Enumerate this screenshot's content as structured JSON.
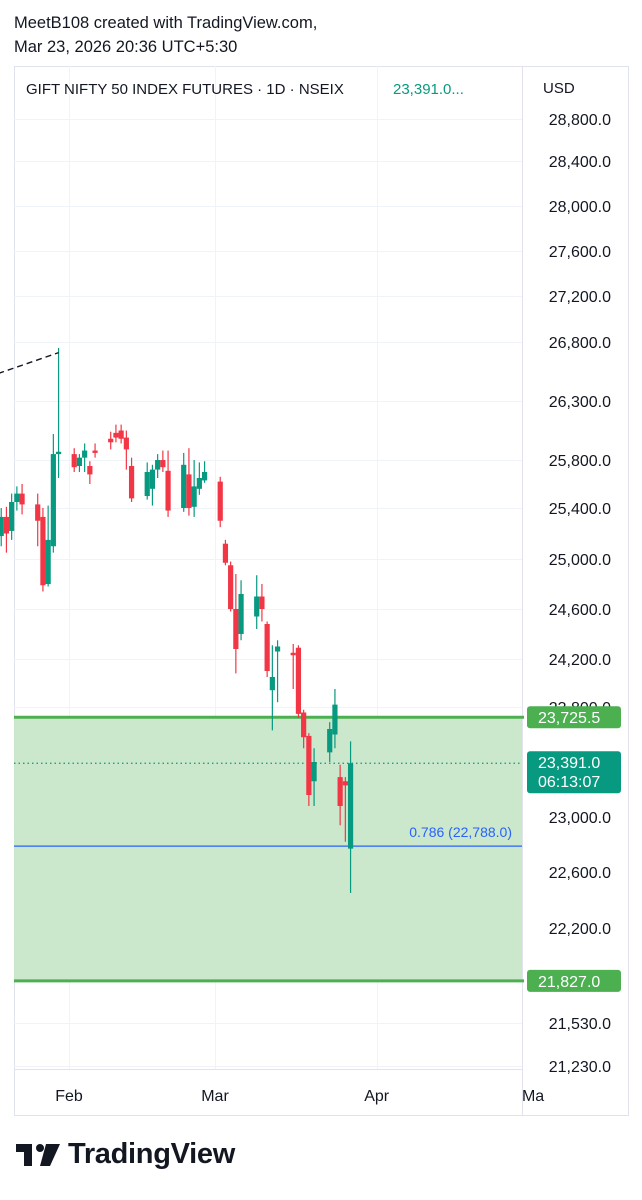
{
  "header": {
    "line1": "MeetB108 created with TradingView.com,",
    "line2": "Mar 23, 2026 20:36 UTC+5:30"
  },
  "symbol": {
    "title": "GIFT NIFTY 50 INDEX FUTURES · 1D · NSEIX",
    "price_text": "23,391.0...",
    "currency": "USD"
  },
  "footer": {
    "logo_text": "TradingView"
  },
  "colors": {
    "up": "#089981",
    "down": "#f23645",
    "zone_fill": "#c8e6c9",
    "zone_line": "#4caf50",
    "fib_line": "#2962ff",
    "grid": "#f0f3fa"
  },
  "chart_data": {
    "type": "candlestick",
    "ylim": [
      21080,
      28960
    ],
    "price_scale": [
      {
        "label": "28,800.0",
        "value": 28800
      },
      {
        "label": "28,400.0",
        "value": 28400
      },
      {
        "label": "28,000.0",
        "value": 28000
      },
      {
        "label": "27,600.0",
        "value": 27600
      },
      {
        "label": "27,200.0",
        "value": 27200
      },
      {
        "label": "26,800.0",
        "value": 26800
      },
      {
        "label": "26,300.0",
        "value": 26300
      },
      {
        "label": "25,800.0",
        "value": 25800
      },
      {
        "label": "25,400.0",
        "value": 25400
      },
      {
        "label": "25,000.0",
        "value": 25000
      },
      {
        "label": "24,600.0",
        "value": 24600
      },
      {
        "label": "24,200.0",
        "value": 24200
      },
      {
        "label": "23,800.0",
        "value": 23800
      },
      {
        "label": "23,000.0",
        "value": 23000
      },
      {
        "label": "22,600.0",
        "value": 22600
      },
      {
        "label": "22,200.0",
        "value": 22200
      },
      {
        "label": "21,530.0",
        "value": 21530
      },
      {
        "label": "21,230.0",
        "value": 21230
      }
    ],
    "time_scale": [
      {
        "label": "Feb",
        "date": "2026-02-01"
      },
      {
        "label": "Mar",
        "date": "2026-03-01"
      },
      {
        "label": "Apr",
        "date": "2026-04-01"
      },
      {
        "label": "Ma",
        "date": "2026-05-01"
      }
    ],
    "candles": [
      {
        "date": "2026-01-13",
        "open": 25520,
        "high": 25600,
        "low": 25080,
        "close": 25220
      },
      {
        "date": "2026-01-14",
        "open": 25220,
        "high": 25380,
        "low": 25100,
        "close": 25320
      },
      {
        "date": "2026-01-15",
        "open": 25300,
        "high": 25450,
        "low": 25180,
        "close": 25410
      },
      {
        "date": "2026-01-16",
        "open": 25410,
        "high": 25480,
        "low": 25100,
        "close": 25180
      },
      {
        "date": "2026-01-19",
        "open": 25180,
        "high": 25400,
        "low": 25100,
        "close": 25330
      },
      {
        "date": "2026-01-20",
        "open": 25330,
        "high": 25410,
        "low": 25050,
        "close": 25200
      },
      {
        "date": "2026-01-21",
        "open": 25220,
        "high": 25520,
        "low": 25150,
        "close": 25450
      },
      {
        "date": "2026-01-22",
        "open": 25450,
        "high": 25580,
        "low": 25380,
        "close": 25520
      },
      {
        "date": "2026-01-23",
        "open": 25520,
        "high": 25600,
        "low": 25350,
        "close": 25430
      },
      {
        "date": "2026-01-26",
        "open": 25430,
        "high": 25520,
        "low": 25100,
        "close": 25300
      },
      {
        "date": "2026-01-27",
        "open": 25330,
        "high": 25400,
        "low": 24740,
        "close": 24790
      },
      {
        "date": "2026-01-28",
        "open": 24800,
        "high": 25420,
        "low": 24780,
        "close": 25150
      },
      {
        "date": "2026-01-29",
        "open": 25100,
        "high": 26020,
        "low": 25050,
        "close": 25850
      },
      {
        "date": "2026-01-30",
        "open": 25850,
        "high": 26750,
        "low": 25650,
        "close": 25870
      },
      {
        "date": "2026-02-02",
        "open": 25850,
        "high": 25900,
        "low": 25700,
        "close": 25740
      },
      {
        "date": "2026-02-03",
        "open": 25750,
        "high": 25850,
        "low": 25700,
        "close": 25820
      },
      {
        "date": "2026-02-04",
        "open": 25820,
        "high": 25940,
        "low": 25700,
        "close": 25880
      },
      {
        "date": "2026-02-05",
        "open": 25750,
        "high": 25790,
        "low": 25600,
        "close": 25680
      },
      {
        "date": "2026-02-06",
        "open": 25880,
        "high": 25940,
        "low": 25820,
        "close": 25860
      },
      {
        "date": "2026-02-09",
        "open": 25980,
        "high": 26040,
        "low": 25890,
        "close": 25950
      },
      {
        "date": "2026-02-10",
        "open": 26030,
        "high": 26100,
        "low": 25950,
        "close": 25990
      },
      {
        "date": "2026-02-11",
        "open": 26050,
        "high": 26100,
        "low": 25940,
        "close": 25980
      },
      {
        "date": "2026-02-12",
        "open": 25990,
        "high": 26050,
        "low": 25720,
        "close": 25890
      },
      {
        "date": "2026-02-13",
        "open": 25750,
        "high": 25820,
        "low": 25450,
        "close": 25480
      },
      {
        "date": "2026-02-16",
        "open": 25500,
        "high": 25780,
        "low": 25470,
        "close": 25700
      },
      {
        "date": "2026-02-17",
        "open": 25560,
        "high": 25760,
        "low": 25420,
        "close": 25720
      },
      {
        "date": "2026-02-18",
        "open": 25720,
        "high": 25850,
        "low": 25650,
        "close": 25800
      },
      {
        "date": "2026-02-19",
        "open": 25800,
        "high": 25880,
        "low": 25700,
        "close": 25740
      },
      {
        "date": "2026-02-20",
        "open": 25710,
        "high": 25880,
        "low": 25330,
        "close": 25380
      },
      {
        "date": "2026-02-23",
        "open": 25400,
        "high": 25860,
        "low": 25370,
        "close": 25760
      },
      {
        "date": "2026-02-24",
        "open": 25680,
        "high": 25900,
        "low": 25340,
        "close": 25400
      },
      {
        "date": "2026-02-25",
        "open": 25410,
        "high": 25800,
        "low": 25330,
        "close": 25580
      },
      {
        "date": "2026-02-26",
        "open": 25560,
        "high": 25780,
        "low": 25510,
        "close": 25650
      },
      {
        "date": "2026-02-27",
        "open": 25630,
        "high": 25790,
        "low": 25610,
        "close": 25700
      },
      {
        "date": "2026-03-02",
        "open": 25620,
        "high": 25660,
        "low": 25250,
        "close": 25300
      },
      {
        "date": "2026-03-03",
        "open": 25120,
        "high": 25150,
        "low": 24950,
        "close": 24970
      },
      {
        "date": "2026-03-04",
        "open": 24950,
        "high": 24980,
        "low": 24580,
        "close": 24600
      },
      {
        "date": "2026-03-05",
        "open": 24600,
        "high": 24880,
        "low": 24080,
        "close": 24280
      },
      {
        "date": "2026-03-06",
        "open": 24400,
        "high": 24830,
        "low": 24350,
        "close": 24720
      },
      {
        "date": "2026-03-09",
        "open": 24540,
        "high": 24870,
        "low": 24440,
        "close": 24700
      },
      {
        "date": "2026-03-10",
        "open": 24700,
        "high": 24800,
        "low": 24500,
        "close": 24600
      },
      {
        "date": "2026-03-11",
        "open": 24480,
        "high": 24500,
        "low": 24050,
        "close": 24100
      },
      {
        "date": "2026-03-12",
        "open": 23940,
        "high": 24310,
        "low": 23630,
        "close": 24050
      },
      {
        "date": "2026-03-13",
        "open": 24260,
        "high": 24350,
        "low": 23840,
        "close": 24300
      },
      {
        "date": "2026-03-16",
        "open": 24250,
        "high": 24320,
        "low": 23950,
        "close": 24230
      },
      {
        "date": "2026-03-17",
        "open": 24290,
        "high": 24310,
        "low": 23720,
        "close": 23750
      },
      {
        "date": "2026-03-18",
        "open": 23760,
        "high": 23780,
        "low": 23500,
        "close": 23580
      },
      {
        "date": "2026-03-19",
        "open": 23590,
        "high": 23610,
        "low": 23080,
        "close": 23160
      },
      {
        "date": "2026-03-20",
        "open": 23260,
        "high": 23500,
        "low": 23080,
        "close": 23400
      },
      {
        "date": "2026-03-23",
        "open": 23470,
        "high": 23690,
        "low": 23400,
        "close": 23640
      },
      {
        "date": "2026-03-24",
        "open": 23600,
        "high": 23950,
        "low": 23500,
        "close": 23820
      },
      {
        "date": "2026-03-25",
        "open": 23290,
        "high": 23380,
        "low": 22940,
        "close": 23080
      },
      {
        "date": "2026-03-26",
        "open": 23260,
        "high": 23290,
        "low": 22820,
        "close": 23230
      },
      {
        "date": "2026-03-27",
        "open": 22770,
        "high": 23550,
        "low": 22450,
        "close": 23391
      }
    ],
    "zone": {
      "top": 23725.5,
      "bottom": 21827.0
    },
    "zone_labels": {
      "top": "23,725.5",
      "bottom": "21,827.0"
    },
    "fib_level": {
      "value": 22788.0,
      "label": "0.786 (22,788.0)"
    },
    "last_price": {
      "value": 23391.0,
      "label": "23,391.0",
      "countdown": "06:13:07"
    },
    "trendline": {
      "from": {
        "date": "2026-01-13",
        "value": 26450
      },
      "to": {
        "date": "2026-01-30",
        "value": 26710
      }
    }
  }
}
